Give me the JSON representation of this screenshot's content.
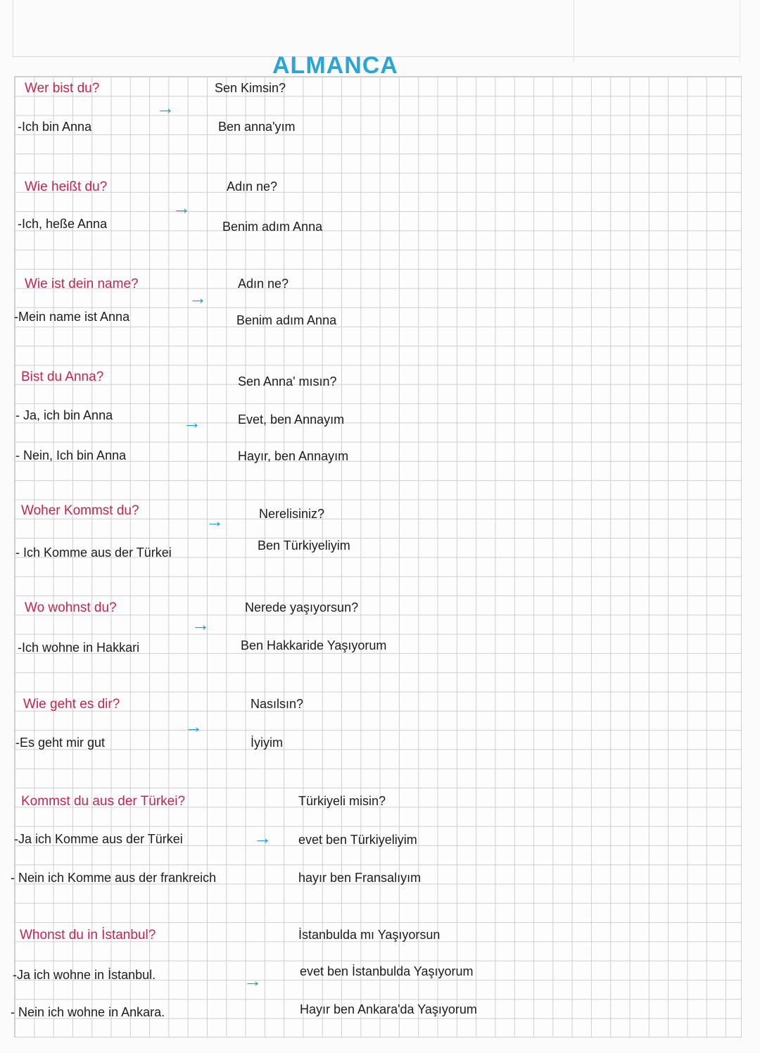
{
  "title": "ALMANCA",
  "colors": {
    "question": "#c0264f",
    "answer": "#1c1c1c",
    "arrow": "#1e9ad6",
    "title": "#2aa6d6"
  },
  "arrow_icon": "right-arrow",
  "blocks": [
    {
      "german": [
        "Wer bist du?",
        "-Ich bin Anna"
      ],
      "turkish": [
        "Sen Kimsin?",
        "Ben anna'yım"
      ]
    },
    {
      "german": [
        "Wie heißt du?",
        "-Ich, heße Anna"
      ],
      "turkish": [
        "Adın ne?",
        "Benim adım Anna"
      ]
    },
    {
      "german": [
        "Wie ist dein name?",
        "-Mein name ist Anna"
      ],
      "turkish": [
        "Adın ne?",
        "Benim adım Anna"
      ]
    },
    {
      "german": [
        "Bist du Anna?",
        "- Ja, ich bin Anna",
        "- Nein, Ich bin Anna"
      ],
      "turkish": [
        "Sen Anna' mısın?",
        "Evet, ben Annayım",
        "Hayır, ben Annayım"
      ]
    },
    {
      "german": [
        "Woher Kommst du?",
        "- Ich Komme aus der Türkei"
      ],
      "turkish": [
        "Nerelisiniz?",
        "Ben Türkiyeliyim"
      ]
    },
    {
      "german": [
        "Wo wohnst du?",
        "-Ich wohne in Hakkari"
      ],
      "turkish": [
        "Nerede yaşıyorsun?",
        "Ben Hakkaride Yaşıyorum"
      ]
    },
    {
      "german": [
        "Wie geht es dir?",
        "-Es geht mir gut"
      ],
      "turkish": [
        "Nasılsın?",
        "İyiyim"
      ]
    },
    {
      "german": [
        "Kommst du aus der Türkei?",
        "-Ja ich Komme aus der Türkei",
        "- Nein ich Komme aus der frankreich"
      ],
      "turkish": [
        "Türkiyeli misin?",
        "evet ben Türkiyeliyim",
        "hayır ben Fransalıyım"
      ]
    },
    {
      "german": [
        "Whonst du in İstanbul?",
        "-Ja ich wohne in İstanbul.",
        "- Nein ich wohne in Ankara."
      ],
      "turkish": [
        "İstanbulda mı Yaşıyorsun",
        "evet ben İstanbulda Yaşıyorum",
        "Hayır ben Ankara'da Yaşıyorum"
      ]
    }
  ]
}
